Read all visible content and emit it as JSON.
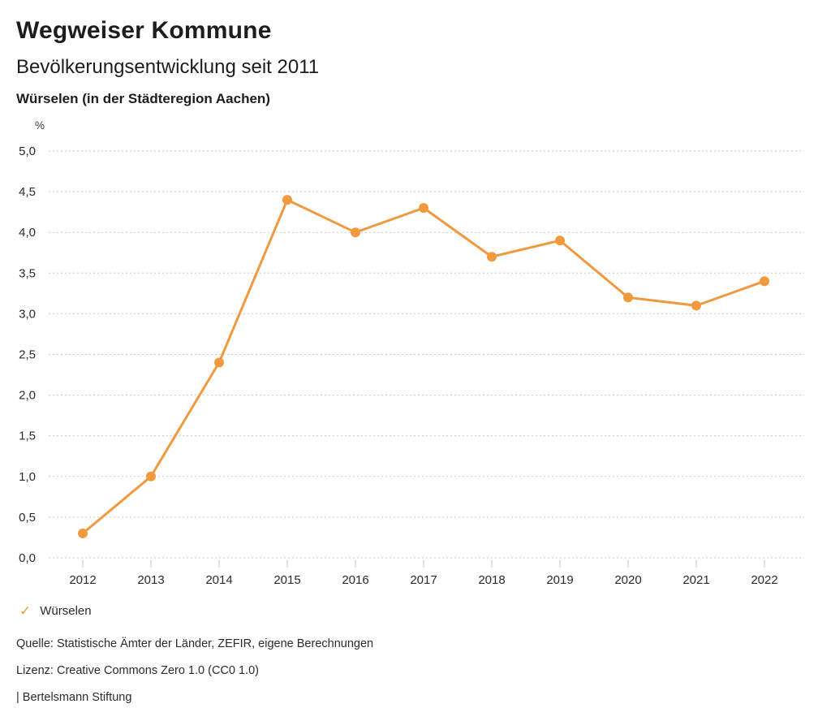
{
  "header": {
    "app_title": "Wegweiser Kommune",
    "chart_title": "Bevölkerungsentwicklung seit 2011",
    "chart_subtitle": "Würselen (in der Städteregion Aachen)"
  },
  "chart_data": {
    "type": "line",
    "title": "Bevölkerungsentwicklung seit 2011",
    "subtitle": "Würselen (in der Städteregion Aachen)",
    "unit_label": "%",
    "xlabel": "",
    "ylabel": "%",
    "x": [
      2012,
      2013,
      2014,
      2015,
      2016,
      2017,
      2018,
      2019,
      2020,
      2021,
      2022
    ],
    "series": [
      {
        "name": "Würselen",
        "values": [
          0.3,
          1.0,
          2.4,
          4.4,
          4.0,
          4.3,
          3.7,
          3.9,
          3.2,
          3.1,
          3.4
        ]
      }
    ],
    "ylim": [
      0.0,
      5.0
    ],
    "ytick_step": 0.5,
    "decimal_separator": ",",
    "grid": "horizontal-dotted",
    "legend_position": "bottom-left",
    "line_color": "#F0993E",
    "gridline_color": "#c9c9c9"
  },
  "legend": {
    "items": [
      {
        "label": "Würselen",
        "color": "#F0993E",
        "icon": "check"
      }
    ]
  },
  "footer": {
    "source": "Quelle: Statistische Ämter der Länder, ZEFIR, eigene Berechnungen",
    "license": "Lizenz: Creative Commons Zero 1.0 (CC0 1.0)",
    "attribution": "| Bertelsmann Stiftung"
  }
}
